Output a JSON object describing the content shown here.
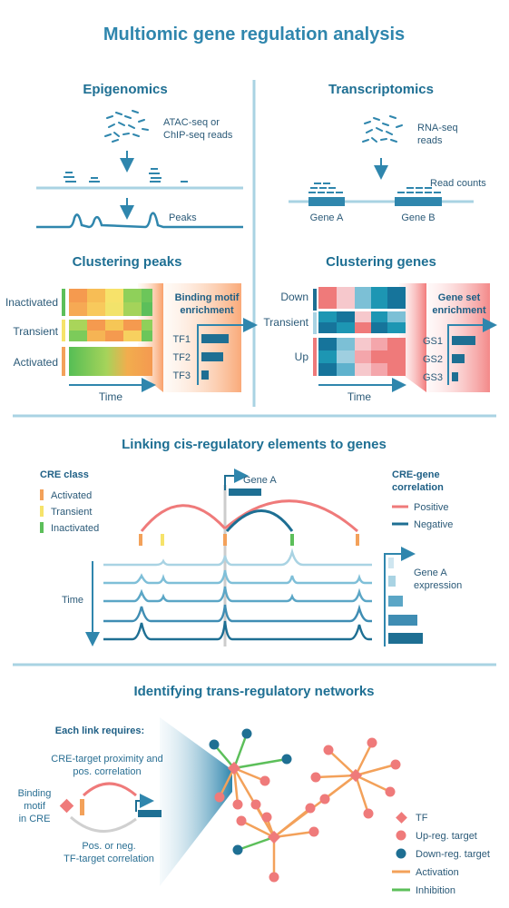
{
  "title": "Multiomic gene regulation analysis",
  "epigenomics": {
    "heading": "Epigenomics",
    "reads_label_1": "ATAC-seq or",
    "reads_label_2": "ChIP-seq reads",
    "peaks_label": "Peaks"
  },
  "transcriptomics": {
    "heading": "Transcriptomics",
    "reads_label_1": "RNA-seq",
    "reads_label_2": "reads",
    "counts_label": "Read counts",
    "gene_a": "Gene A",
    "gene_b": "Gene B"
  },
  "clustering_peaks": {
    "heading": "Clustering peaks",
    "rows": [
      "Inactivated",
      "Transient",
      "Activated"
    ],
    "axis_label": "Time",
    "enrichment_1": "Binding motif",
    "enrichment_2": "enrichment",
    "factors": [
      "TF1",
      "TF2",
      "TF3"
    ]
  },
  "clustering_genes": {
    "heading": "Clustering genes",
    "rows": [
      "Down",
      "Transient",
      "Up"
    ],
    "axis_label": "Time",
    "enrichment_1": "Gene set",
    "enrichment_2": "enrichment",
    "sets": [
      "GS1",
      "GS2",
      "GS3"
    ]
  },
  "linking": {
    "heading": "Linking cis-regulatory elements to genes",
    "cre_class_title": "CRE class",
    "cre_classes": [
      "Activated",
      "Transient",
      "Inactivated"
    ],
    "correlation_title_1": "CRE-gene",
    "correlation_title_2": "correlation",
    "correlations": [
      "Positive",
      "Negative"
    ],
    "gene_label": "Gene A",
    "time_label": "Time",
    "expression_1": "Gene A",
    "expression_2": "expression"
  },
  "networks": {
    "heading": "Identifying trans-regulatory networks",
    "each_link": "Each link requires:",
    "proximity_1": "CRE-target proximity and",
    "proximity_2": "pos. correlation",
    "binding_1": "Binding",
    "binding_2": "motif",
    "binding_3": "in CRE",
    "tf_corr_1": "Pos. or neg.",
    "tf_corr_2": "TF-target correlation",
    "legend": [
      "TF",
      "Up-reg. target",
      "Down-reg. target",
      "Activation",
      "Inhibition"
    ]
  },
  "colors": {
    "primary": "#2f86ad",
    "dark_blue": "#1e6f93",
    "line_blue": "#a9d3e3",
    "orange": "#f3a15a",
    "yellow": "#f6e36a",
    "green": "#5cbf5a",
    "red": "#ef7a7a",
    "teal": "#1d96b3"
  }
}
